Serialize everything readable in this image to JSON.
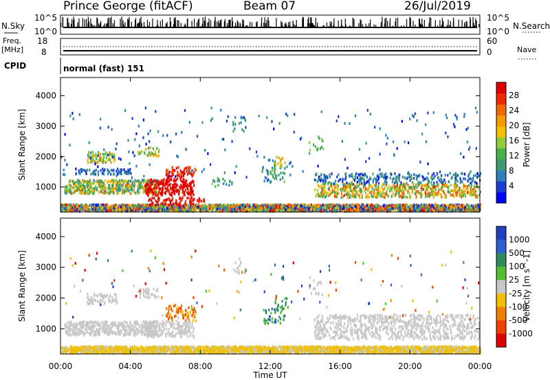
{
  "header": {
    "station": "Prince George (fitACF)",
    "beam": "Beam 07",
    "date": "26/Jul/2019"
  },
  "strip": {
    "nsky_label": "N.Sky",
    "nsearch_label": "N.Search",
    "nsky_ticks": [
      "10^5",
      "10^0"
    ],
    "nsky_ticks_right": [
      "10^5",
      "10^0"
    ],
    "freq_label": "Freq.",
    "freq_unit": "[MHz]",
    "freq_ticks": [
      "18",
      "8"
    ],
    "nave_label": "Nave",
    "nave_ticks": [
      "60",
      "0"
    ],
    "cpid_label": "CPID",
    "cpid_value": "normal (fast) 151"
  },
  "chart_data": [
    {
      "type": "heatmap",
      "name": "power",
      "ylabel": "Slant Range [km]",
      "ylim": [
        180,
        4600
      ],
      "yticks": [
        1000,
        2000,
        3000,
        4000
      ],
      "xticks": [
        "00:00",
        "04:00",
        "08:00",
        "12:00",
        "16:00",
        "20:00",
        "00:00"
      ],
      "colorbar": {
        "label": "Power [dB]",
        "ticks": [
          28,
          24,
          20,
          16,
          12,
          8,
          4
        ],
        "colors": [
          "#0000ff",
          "#1a3fd0",
          "#2f7fbd",
          "#3d9b74",
          "#49b24b",
          "#8fcb3a",
          "#f2c200",
          "#f59a00",
          "#f06a00",
          "#f02a00",
          "#e00000"
        ]
      },
      "features": [
        {
          "t": [
            0.0,
            5.5
          ],
          "range": [
            800,
            1200
          ],
          "level": "12-20 dB"
        },
        {
          "t": [
            4.8,
            7.8
          ],
          "range": [
            700,
            1300
          ],
          "level": ">28 dB"
        },
        {
          "t": [
            1.5,
            3.0
          ],
          "range": [
            1900,
            2100
          ],
          "level": "16-24 dB"
        },
        {
          "t": [
            14.5,
            24.0
          ],
          "range": [
            700,
            1100
          ],
          "level": "12-24 dB"
        }
      ]
    },
    {
      "type": "heatmap",
      "name": "velocity",
      "ylabel": "Slant Range [km]",
      "ylim": [
        180,
        4600
      ],
      "yticks": [
        1000,
        2000,
        3000,
        4000
      ],
      "xticks": [
        "00:00",
        "04:00",
        "08:00",
        "12:00",
        "16:00",
        "20:00",
        "00:00"
      ],
      "xlabel": "Time UT",
      "colorbar": {
        "label": "Velocity [m s^-1]",
        "ticks": [
          1000,
          500,
          100,
          25,
          -25,
          -100,
          -500,
          -1000
        ],
        "colors": [
          "#2040c0",
          "#3060d0",
          "#308a5a",
          "#50c030",
          "#c8c8c8",
          "#f0c000",
          "#f08000",
          "#f04000",
          "#e00000"
        ]
      },
      "features": [
        {
          "t": [
            0.0,
            5.5
          ],
          "range": [
            800,
            1200
          ],
          "level": "ground scatter"
        },
        {
          "t": [
            6.0,
            7.6
          ],
          "range": [
            1100,
            1800
          ],
          "level": "-100 to -500 m/s"
        },
        {
          "t": [
            11.5,
            12.8
          ],
          "range": [
            1200,
            1600
          ],
          "level": "100-500 m/s"
        }
      ]
    }
  ]
}
